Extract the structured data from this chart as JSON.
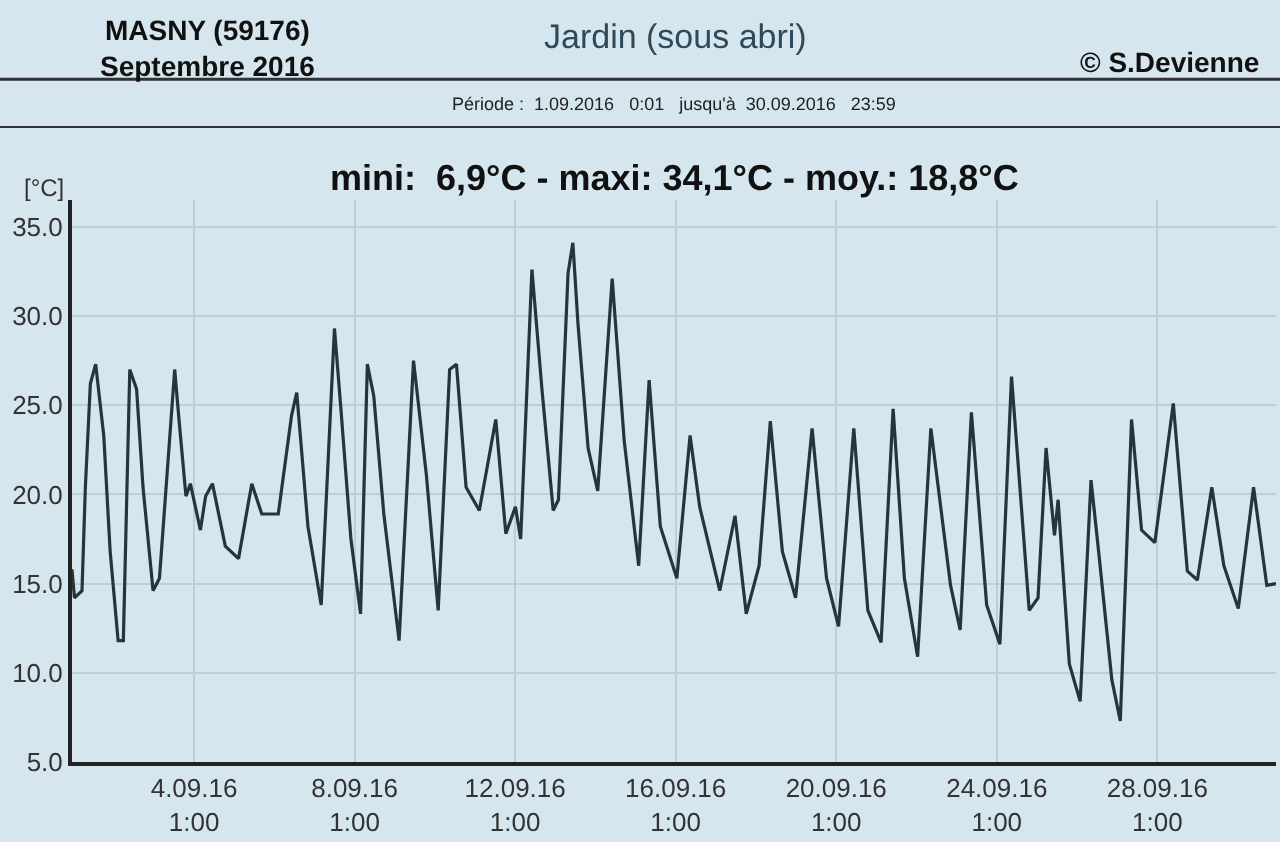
{
  "chart_data": {
    "type": "line",
    "title": "Jardin (sous abri)",
    "subtitle": "Période :  1.09.2016   0:01   jusqu'à  30.09.2016   23:59",
    "ylabel": "[°C]",
    "annotations": [
      "MASNY (59176)\nSeptembre 2016",
      "© S.Devienne",
      "mini:  6,9°C - maxi: 34,1°C - moy.: 18,8°C"
    ],
    "x": [
      "2016-09-01T00:01",
      "2016-09-01T01:30",
      "2016-09-01T06:00",
      "2016-09-01T08:00",
      "2016-09-01T11:00",
      "2016-09-01T14:10",
      "2016-09-01T19:00",
      "2016-09-01T22:50",
      "2016-09-02T03:36",
      "2016-09-02T06:43",
      "2016-09-02T10:34",
      "2016-09-02T14:38",
      "2016-09-02T18:29",
      "2016-09-03T00:29",
      "2016-09-03T04:19",
      "2016-09-03T13:26",
      "2016-09-03T16:05",
      "2016-09-03T20:10",
      "2016-09-03T22:48",
      "2016-09-04T04:48",
      "2016-09-04T07:55",
      "2016-09-04T12:00",
      "2016-09-04T19:41",
      "2016-09-05T03:36",
      "2016-09-05T11:31",
      "2016-09-05T17:31",
      "2016-09-06T03:22",
      "2016-09-06T11:17",
      "2016-09-06T14:24",
      "2016-09-06T21:07",
      "2016-09-07T05:02",
      "2016-09-07T12:58",
      "2016-09-07T16:48",
      "2016-09-07T22:48",
      "2016-09-08T04:34",
      "2016-09-08T08:38",
      "2016-09-08T12:29",
      "2016-09-08T18:29",
      "2016-09-09T03:36",
      "2016-09-09T12:14",
      "2016-09-09T19:55",
      "2016-09-10T03:00",
      "2016-09-10T09:50",
      "2016-09-10T13:55",
      "2016-09-10T19:41",
      "2016-09-11T03:36",
      "2016-09-11T13:26",
      "2016-09-11T19:26",
      "2016-09-12T01:12",
      "2016-09-12T04:19",
      "2016-09-12T11:02",
      "2016-09-12T17:02",
      "2016-09-12T23:46",
      "2016-09-13T02:53",
      "2016-09-13T08:38",
      "2016-09-13T11:31",
      "2016-09-13T14:38",
      "2016-09-13T20:38",
      "2016-09-14T02:24",
      "2016-09-14T11:02",
      "2016-09-14T18:14",
      "2016-09-15T02:53",
      "2016-09-15T09:07",
      "2016-09-15T15:50",
      "2016-09-16T01:41",
      "2016-09-16T09:36",
      "2016-09-16T15:22",
      "2016-09-17T03:22",
      "2016-09-17T12:29",
      "2016-09-17T19:12",
      "2016-09-18T02:53",
      "2016-09-18T09:36",
      "2016-09-18T16:48",
      "2016-09-19T00:43",
      "2016-09-19T10:34",
      "2016-09-19T19:12",
      "2016-09-20T02:24",
      "2016-09-20T11:31",
      "2016-09-20T19:55",
      "2016-09-21T03:50",
      "2016-09-21T11:02",
      "2016-09-21T17:46",
      "2016-09-22T01:41",
      "2016-09-22T09:36",
      "2016-09-22T21:22",
      "2016-09-23T03:07",
      "2016-09-23T09:50",
      "2016-09-23T18:58",
      "2016-09-24T02:53",
      "2016-09-24T09:50",
      "2016-09-24T20:24",
      "2016-09-25T01:41",
      "2016-09-25T06:29",
      "2016-09-25T11:31",
      "2016-09-25T13:41",
      "2016-09-25T20:24",
      "2016-09-26T02:53",
      "2016-09-26T09:22",
      "2016-09-26T13:55",
      "2016-09-26T21:50",
      "2016-09-27T02:53",
      "2016-09-27T09:36",
      "2016-09-27T15:36",
      "2016-09-27T23:31",
      "2016-09-28T10:34",
      "2016-09-28T18:58",
      "2016-09-29T00:58",
      "2016-09-29T09:36",
      "2016-09-29T16:48",
      "2016-09-30T01:26",
      "2016-09-30T10:34",
      "2016-09-30T18:29",
      "2016-09-30T23:59"
    ],
    "series": [
      {
        "color": "#26343c",
        "values": [
          15.8,
          14.2,
          14.6,
          20.4,
          26.2,
          27.3,
          23.3,
          16.8,
          11.8,
          11.8,
          27.0,
          25.9,
          20.4,
          14.6,
          15.3,
          27.0,
          24.1,
          19.9,
          20.6,
          18.0,
          19.9,
          20.6,
          17.1,
          16.4,
          20.6,
          18.9,
          18.9,
          24.4,
          25.7,
          18.2,
          13.8,
          29.3,
          24.8,
          17.5,
          13.3,
          27.3,
          25.5,
          18.9,
          11.8,
          27.5,
          21.1,
          13.5,
          27.0,
          27.3,
          20.4,
          19.1,
          24.2,
          17.8,
          19.3,
          17.5,
          32.6,
          25.9,
          19.1,
          19.7,
          32.4,
          34.1,
          29.5,
          22.6,
          20.2,
          32.1,
          23.0,
          16.0,
          26.4,
          18.2,
          15.3,
          23.3,
          19.3,
          14.6,
          18.8,
          13.3,
          16.0,
          24.1,
          16.8,
          14.2,
          23.7,
          15.3,
          12.6,
          23.7,
          13.5,
          11.7,
          24.8,
          15.3,
          10.9,
          23.7,
          14.9,
          12.4,
          24.6,
          13.8,
          11.6,
          26.6,
          13.5,
          14.2,
          22.6,
          17.7,
          19.7,
          10.5,
          8.4,
          20.8,
          16.8,
          9.6,
          7.3,
          24.2,
          18.0,
          17.3,
          25.1,
          15.7,
          15.2,
          20.4,
          16.0,
          13.6,
          20.4,
          14.9,
          15.0
        ]
      }
    ],
    "xlim": [
      "2016-09-01T00:01",
      "2016-09-30T23:59"
    ],
    "xticks": [
      {
        "value": "2016-09-04T01:00",
        "label": "4.09.16\n1:00"
      },
      {
        "value": "2016-09-08T01:00",
        "label": "8.09.16\n1:00"
      },
      {
        "value": "2016-09-12T01:00",
        "label": "12.09.16\n1:00"
      },
      {
        "value": "2016-09-16T01:00",
        "label": "16.09.16\n1:00"
      },
      {
        "value": "2016-09-20T01:00",
        "label": "20.09.16\n1:00"
      },
      {
        "value": "2016-09-24T01:00",
        "label": "24.09.16\n1:00"
      },
      {
        "value": "2016-09-28T01:00",
        "label": "28.09.16\n1:00"
      }
    ],
    "ylim": [
      5,
      36.5
    ],
    "yticks": [
      {
        "value": 5,
        "label": "5.0"
      },
      {
        "value": 10,
        "label": "10.0"
      },
      {
        "value": 15,
        "label": "15.0"
      },
      {
        "value": 20,
        "label": "20.0"
      },
      {
        "value": 25,
        "label": "25.0"
      },
      {
        "value": 30,
        "label": "30.0"
      },
      {
        "value": 35,
        "label": "35.0"
      }
    ],
    "grid": true,
    "line_style": "solid",
    "marker": "none"
  }
}
